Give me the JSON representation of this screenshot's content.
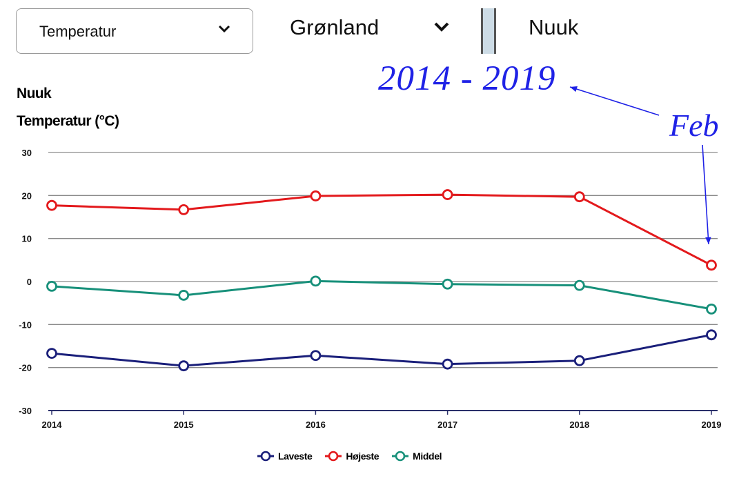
{
  "controls": {
    "measure_select": {
      "value": "Temperatur",
      "icon": "chevron-down-icon"
    },
    "country_select": {
      "value": "Grønland",
      "icon": "chevron-down-icon"
    },
    "city": "Nuuk"
  },
  "annotations": {
    "years": "2014 - 2019",
    "month": "Feb",
    "color": "#1f22e6"
  },
  "chart_data": {
    "type": "line",
    "title": "Nuuk",
    "subtitle": "Temperatur (°C)",
    "x": [
      "2014",
      "2015",
      "2016",
      "2017",
      "2018",
      "2019"
    ],
    "ylim": [
      -30,
      30
    ],
    "yticks": [
      30,
      20,
      10,
      0,
      -10,
      -20,
      -30
    ],
    "grid": true,
    "legend_position": "bottom",
    "series": [
      {
        "name": "Laveste",
        "color": "#1a1f7a",
        "values": [
          -16.7,
          -19.6,
          -17.2,
          -19.2,
          -18.4,
          -12.4
        ]
      },
      {
        "name": "Højeste",
        "color": "#e3191c",
        "values": [
          17.7,
          16.7,
          19.9,
          20.2,
          19.7,
          3.8
        ]
      },
      {
        "name": "Middel",
        "color": "#17907a",
        "values": [
          -1.1,
          -3.2,
          0.1,
          -0.6,
          -0.9,
          -6.4
        ]
      }
    ]
  }
}
